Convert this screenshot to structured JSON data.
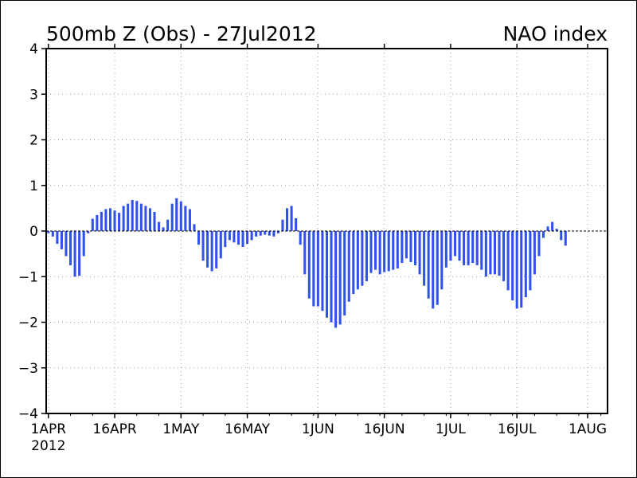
{
  "chart_data": {
    "type": "bar",
    "title": "500mb Z (Obs) - 27Jul2012",
    "subtitle": "NAO index",
    "xlabel": "",
    "ylabel": "",
    "ylim": [
      -4,
      4
    ],
    "yticks": [
      {
        "value": 4,
        "label": "4"
      },
      {
        "value": 3,
        "label": "3"
      },
      {
        "value": 2,
        "label": "2"
      },
      {
        "value": 1,
        "label": "1"
      },
      {
        "value": 0,
        "label": "0"
      },
      {
        "value": -1,
        "label": "−1"
      },
      {
        "value": -2,
        "label": "−2"
      },
      {
        "value": -3,
        "label": "−3"
      },
      {
        "value": -4,
        "label": "−4"
      }
    ],
    "x_start_date": "2012-04-01",
    "x_range_days": [
      -0.5,
      126.5
    ],
    "xticks": [
      {
        "day": 0,
        "label": "1APR",
        "sublabel": "2012"
      },
      {
        "day": 15,
        "label": "16APR"
      },
      {
        "day": 30,
        "label": "1MAY"
      },
      {
        "day": 45,
        "label": "16MAY"
      },
      {
        "day": 61,
        "label": "1JUN"
      },
      {
        "day": 76,
        "label": "16JUN"
      },
      {
        "day": 91,
        "label": "1JUL"
      },
      {
        "day": 106,
        "label": "16JUL"
      },
      {
        "day": 122,
        "label": "1AUG"
      }
    ],
    "grid": true,
    "zero_line": "dashed",
    "bar_color": "#3050f0",
    "values": [
      -0.05,
      -0.12,
      -0.28,
      -0.4,
      -0.55,
      -0.75,
      -1.0,
      -0.98,
      -0.55,
      -0.05,
      0.27,
      0.35,
      0.42,
      0.48,
      0.5,
      0.45,
      0.4,
      0.55,
      0.6,
      0.68,
      0.66,
      0.6,
      0.55,
      0.5,
      0.42,
      0.2,
      0.08,
      0.25,
      0.6,
      0.72,
      0.65,
      0.55,
      0.48,
      0.15,
      -0.3,
      -0.65,
      -0.8,
      -0.88,
      -0.82,
      -0.6,
      -0.35,
      -0.2,
      -0.25,
      -0.3,
      -0.35,
      -0.28,
      -0.2,
      -0.12,
      -0.1,
      -0.08,
      -0.1,
      -0.12,
      -0.05,
      0.25,
      0.5,
      0.55,
      0.28,
      -0.3,
      -0.95,
      -1.48,
      -1.65,
      -1.65,
      -1.75,
      -1.9,
      -2.0,
      -2.12,
      -2.05,
      -1.85,
      -1.55,
      -1.38,
      -1.28,
      -1.2,
      -1.1,
      -0.92,
      -0.85,
      -0.95,
      -0.9,
      -0.88,
      -0.85,
      -0.82,
      -0.7,
      -0.6,
      -0.68,
      -0.75,
      -0.95,
      -1.2,
      -1.48,
      -1.7,
      -1.62,
      -1.28,
      -0.8,
      -0.65,
      -0.55,
      -0.65,
      -0.75,
      -0.75,
      -0.7,
      -0.75,
      -0.85,
      -1.0,
      -0.95,
      -0.95,
      -0.98,
      -1.1,
      -1.3,
      -1.52,
      -1.7,
      -1.68,
      -1.45,
      -1.3,
      -0.95,
      -0.55,
      -0.15,
      0.1,
      0.2,
      0.05,
      -0.2,
      -0.32
    ]
  }
}
